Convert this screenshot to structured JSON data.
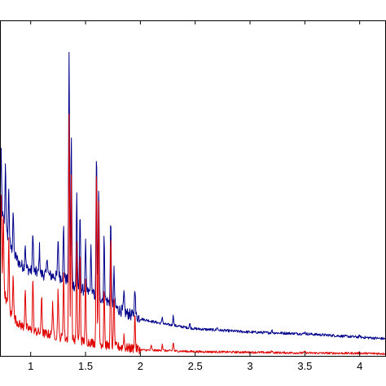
{
  "chart_data": {
    "type": "line",
    "title": "",
    "xlabel": "",
    "ylabel": "",
    "xlim": [
      0.72,
      4.24
    ],
    "ylim": [
      0,
      1.0
    ],
    "grid": false,
    "legend": "none",
    "x_ticks": [
      1,
      1.5,
      2,
      2.5,
      3,
      3.5,
      4
    ],
    "x_tick_labels": [
      "1",
      "1.5",
      "2",
      "2.5",
      "3",
      "3.5",
      "4"
    ],
    "series": [
      {
        "color": "#00008b",
        "baseline": [
          [
            0.72,
            0.45
          ],
          [
            0.8,
            0.33
          ],
          [
            0.9,
            0.27
          ],
          [
            1.0,
            0.25
          ],
          [
            1.1,
            0.24
          ],
          [
            1.2,
            0.235
          ],
          [
            1.3,
            0.23
          ],
          [
            1.4,
            0.205
          ],
          [
            1.5,
            0.19
          ],
          [
            1.6,
            0.175
          ],
          [
            1.7,
            0.16
          ],
          [
            1.8,
            0.135
          ],
          [
            1.9,
            0.12
          ],
          [
            2.0,
            0.11
          ],
          [
            2.2,
            0.095
          ],
          [
            2.5,
            0.08
          ],
          [
            3.0,
            0.07
          ],
          [
            3.5,
            0.065
          ],
          [
            4.0,
            0.055
          ],
          [
            4.24,
            0.05
          ]
        ],
        "peaks": [
          [
            0.73,
            0.6
          ],
          [
            0.77,
            0.57
          ],
          [
            0.8,
            0.5
          ],
          [
            0.84,
            0.43
          ],
          [
            0.95,
            0.33
          ],
          [
            1.02,
            0.37
          ],
          [
            1.08,
            0.32
          ],
          [
            1.15,
            0.3
          ],
          [
            1.25,
            0.35
          ],
          [
            1.3,
            0.38
          ],
          [
            1.35,
            0.91
          ],
          [
            1.37,
            0.65
          ],
          [
            1.42,
            0.48
          ],
          [
            1.45,
            0.42
          ],
          [
            1.5,
            0.33
          ],
          [
            1.55,
            0.32
          ],
          [
            1.6,
            0.61
          ],
          [
            1.62,
            0.5
          ],
          [
            1.67,
            0.35
          ],
          [
            1.73,
            0.4
          ],
          [
            1.76,
            0.25
          ],
          [
            1.85,
            0.18
          ],
          [
            1.95,
            0.21
          ],
          [
            2.05,
            0.1
          ],
          [
            2.2,
            0.115
          ],
          [
            2.3,
            0.12
          ],
          [
            2.45,
            0.095
          ],
          [
            2.7,
            0.085
          ],
          [
            3.2,
            0.075
          ],
          [
            3.5,
            0.07
          ],
          [
            4.0,
            0.06
          ]
        ]
      },
      {
        "color": "#e00000",
        "baseline": [
          [
            0.72,
            0.25
          ],
          [
            0.8,
            0.13
          ],
          [
            0.9,
            0.09
          ],
          [
            1.0,
            0.075
          ],
          [
            1.1,
            0.065
          ],
          [
            1.2,
            0.06
          ],
          [
            1.3,
            0.05
          ],
          [
            1.4,
            0.045
          ],
          [
            1.5,
            0.04
          ],
          [
            1.6,
            0.035
          ],
          [
            1.7,
            0.028
          ],
          [
            1.8,
            0.024
          ],
          [
            1.9,
            0.02
          ],
          [
            2.0,
            0.017
          ],
          [
            2.5,
            0.012
          ],
          [
            3.0,
            0.01
          ],
          [
            3.5,
            0.008
          ],
          [
            4.0,
            0.007
          ],
          [
            4.24,
            0.006
          ]
        ],
        "peaks": [
          [
            0.73,
            0.48
          ],
          [
            0.75,
            0.43
          ],
          [
            0.8,
            0.35
          ],
          [
            0.84,
            0.25
          ],
          [
            0.95,
            0.2
          ],
          [
            1.02,
            0.23
          ],
          [
            1.1,
            0.18
          ],
          [
            1.2,
            0.16
          ],
          [
            1.25,
            0.2
          ],
          [
            1.3,
            0.25
          ],
          [
            1.35,
            0.73
          ],
          [
            1.37,
            0.55
          ],
          [
            1.42,
            0.33
          ],
          [
            1.45,
            0.3
          ],
          [
            1.5,
            0.22
          ],
          [
            1.6,
            0.55
          ],
          [
            1.62,
            0.45
          ],
          [
            1.67,
            0.2
          ],
          [
            1.73,
            0.35
          ],
          [
            1.76,
            0.18
          ],
          [
            1.85,
            0.06
          ],
          [
            1.95,
            0.12
          ],
          [
            2.1,
            0.03
          ],
          [
            2.2,
            0.035
          ],
          [
            2.3,
            0.04
          ],
          [
            3.2,
            0.015
          ],
          [
            3.5,
            0.013
          ],
          [
            4.0,
            0.01
          ]
        ]
      }
    ]
  }
}
